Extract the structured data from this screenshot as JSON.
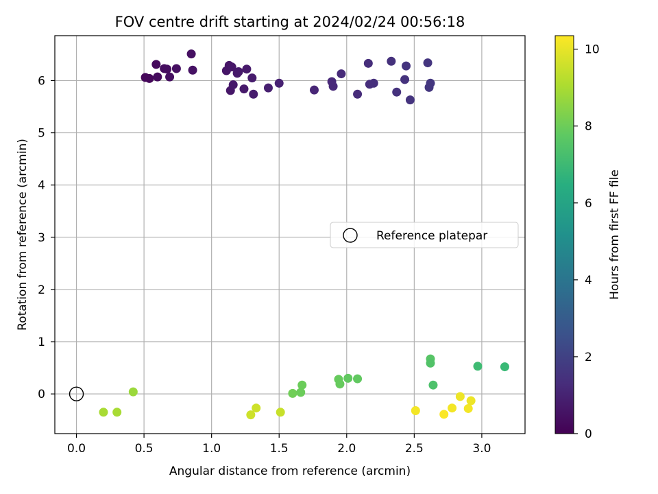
{
  "chart_data": {
    "type": "scatter",
    "title": "FOV centre drift starting at 2024/02/24 00:56:18",
    "xlabel": "Angular distance from reference (arcmin)",
    "ylabel": "Rotation from reference (arcmin)",
    "xlim": [
      -0.16,
      3.32
    ],
    "ylim": [
      -0.76,
      6.86
    ],
    "xticks": [
      0.0,
      0.5,
      1.0,
      1.5,
      2.0,
      2.5,
      3.0
    ],
    "xtick_labels": [
      "0.0",
      "0.5",
      "1.0",
      "1.5",
      "2.0",
      "2.5",
      "3.0"
    ],
    "yticks": [
      0,
      1,
      2,
      3,
      4,
      5,
      6
    ],
    "ytick_labels": [
      "0",
      "1",
      "2",
      "3",
      "4",
      "5",
      "6"
    ],
    "grid": true,
    "colormap": "viridis",
    "colorbar": {
      "label": "Hours from first FF file",
      "range": [
        0,
        10.35
      ],
      "ticks": [
        0,
        2,
        4,
        6,
        8,
        10
      ],
      "tick_labels": [
        "0",
        "2",
        "4",
        "6",
        "8",
        "10"
      ]
    },
    "legend": {
      "placement": "center-right",
      "entries": [
        "Reference platepar"
      ]
    },
    "reference_point": {
      "x": 0.0,
      "y": 0.0
    },
    "points": [
      {
        "x": 0.51,
        "y": 6.06,
        "hours": 0.2
      },
      {
        "x": 0.54,
        "y": 6.04,
        "hours": 0.2
      },
      {
        "x": 0.59,
        "y": 6.31,
        "hours": 0.25
      },
      {
        "x": 0.6,
        "y": 6.07,
        "hours": 0.3
      },
      {
        "x": 0.65,
        "y": 6.23,
        "hours": 0.35
      },
      {
        "x": 0.67,
        "y": 6.22,
        "hours": 0.35
      },
      {
        "x": 0.69,
        "y": 6.07,
        "hours": 0.4
      },
      {
        "x": 0.74,
        "y": 6.23,
        "hours": 0.4
      },
      {
        "x": 0.85,
        "y": 6.51,
        "hours": 0.45
      },
      {
        "x": 0.86,
        "y": 6.2,
        "hours": 0.5
      },
      {
        "x": 1.11,
        "y": 6.19,
        "hours": 0.6
      },
      {
        "x": 1.13,
        "y": 6.29,
        "hours": 0.6
      },
      {
        "x": 1.15,
        "y": 6.26,
        "hours": 0.65
      },
      {
        "x": 1.14,
        "y": 5.81,
        "hours": 0.65
      },
      {
        "x": 1.16,
        "y": 5.92,
        "hours": 0.7
      },
      {
        "x": 1.19,
        "y": 6.14,
        "hours": 0.7
      },
      {
        "x": 1.2,
        "y": 6.17,
        "hours": 0.7
      },
      {
        "x": 1.24,
        "y": 5.84,
        "hours": 0.75
      },
      {
        "x": 1.26,
        "y": 6.22,
        "hours": 0.75
      },
      {
        "x": 1.3,
        "y": 6.05,
        "hours": 0.8
      },
      {
        "x": 1.31,
        "y": 5.74,
        "hours": 0.8
      },
      {
        "x": 1.42,
        "y": 5.86,
        "hours": 0.9
      },
      {
        "x": 1.5,
        "y": 5.95,
        "hours": 0.95
      },
      {
        "x": 1.76,
        "y": 5.82,
        "hours": 1.1
      },
      {
        "x": 1.89,
        "y": 5.98,
        "hours": 1.2
      },
      {
        "x": 1.9,
        "y": 5.89,
        "hours": 1.2
      },
      {
        "x": 1.96,
        "y": 6.13,
        "hours": 1.25
      },
      {
        "x": 2.08,
        "y": 5.74,
        "hours": 1.3
      },
      {
        "x": 2.16,
        "y": 6.33,
        "hours": 1.35
      },
      {
        "x": 2.17,
        "y": 5.93,
        "hours": 1.35
      },
      {
        "x": 2.2,
        "y": 5.95,
        "hours": 1.4
      },
      {
        "x": 2.33,
        "y": 6.37,
        "hours": 1.45
      },
      {
        "x": 2.37,
        "y": 5.78,
        "hours": 1.5
      },
      {
        "x": 2.43,
        "y": 6.02,
        "hours": 1.5
      },
      {
        "x": 2.44,
        "y": 6.28,
        "hours": 1.55
      },
      {
        "x": 2.47,
        "y": 5.63,
        "hours": 1.55
      },
      {
        "x": 2.6,
        "y": 6.34,
        "hours": 1.6
      },
      {
        "x": 2.61,
        "y": 5.87,
        "hours": 1.65
      },
      {
        "x": 2.62,
        "y": 5.95,
        "hours": 1.65
      },
      {
        "x": 0.2,
        "y": -0.35,
        "hours": 9.0
      },
      {
        "x": 0.3,
        "y": -0.35,
        "hours": 9.0
      },
      {
        "x": 0.42,
        "y": 0.04,
        "hours": 8.8
      },
      {
        "x": 1.29,
        "y": -0.4,
        "hours": 9.6
      },
      {
        "x": 1.33,
        "y": -0.27,
        "hours": 9.6
      },
      {
        "x": 1.51,
        "y": -0.35,
        "hours": 9.5
      },
      {
        "x": 1.6,
        "y": 0.01,
        "hours": 8.1
      },
      {
        "x": 1.66,
        "y": 0.03,
        "hours": 8.0
      },
      {
        "x": 1.67,
        "y": 0.17,
        "hours": 8.0
      },
      {
        "x": 1.94,
        "y": 0.28,
        "hours": 7.9
      },
      {
        "x": 1.95,
        "y": 0.19,
        "hours": 7.9
      },
      {
        "x": 2.01,
        "y": 0.3,
        "hours": 7.8
      },
      {
        "x": 2.08,
        "y": 0.29,
        "hours": 7.8
      },
      {
        "x": 2.62,
        "y": 0.67,
        "hours": 7.6
      },
      {
        "x": 2.62,
        "y": 0.59,
        "hours": 7.5
      },
      {
        "x": 2.64,
        "y": 0.17,
        "hours": 7.4
      },
      {
        "x": 2.97,
        "y": 0.53,
        "hours": 7.1
      },
      {
        "x": 3.17,
        "y": 0.52,
        "hours": 7.0
      },
      {
        "x": 2.51,
        "y": -0.32,
        "hours": 10.2
      },
      {
        "x": 2.72,
        "y": -0.39,
        "hours": 10.3
      },
      {
        "x": 2.78,
        "y": -0.27,
        "hours": 10.2
      },
      {
        "x": 2.84,
        "y": -0.05,
        "hours": 10.1
      },
      {
        "x": 2.9,
        "y": -0.28,
        "hours": 10.2
      },
      {
        "x": 2.92,
        "y": -0.13,
        "hours": 10.1
      }
    ]
  }
}
